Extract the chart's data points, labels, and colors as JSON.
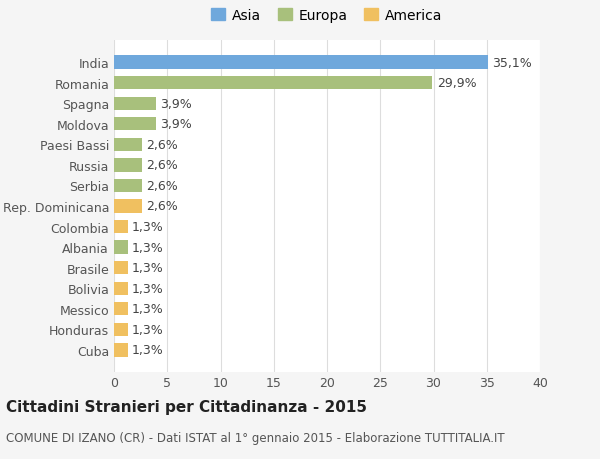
{
  "categories": [
    "India",
    "Romania",
    "Spagna",
    "Moldova",
    "Paesi Bassi",
    "Russia",
    "Serbia",
    "Rep. Dominicana",
    "Colombia",
    "Albania",
    "Brasile",
    "Bolivia",
    "Messico",
    "Honduras",
    "Cuba"
  ],
  "values": [
    35.1,
    29.9,
    3.9,
    3.9,
    2.6,
    2.6,
    2.6,
    2.6,
    1.3,
    1.3,
    1.3,
    1.3,
    1.3,
    1.3,
    1.3
  ],
  "labels": [
    "35,1%",
    "29,9%",
    "3,9%",
    "3,9%",
    "2,6%",
    "2,6%",
    "2,6%",
    "2,6%",
    "1,3%",
    "1,3%",
    "1,3%",
    "1,3%",
    "1,3%",
    "1,3%",
    "1,3%"
  ],
  "continents": [
    "Asia",
    "Europa",
    "Europa",
    "Europa",
    "Europa",
    "Europa",
    "Europa",
    "America",
    "America",
    "Europa",
    "America",
    "America",
    "America",
    "America",
    "America"
  ],
  "colors": {
    "Asia": "#6fa8dc",
    "Europa": "#a8c07c",
    "America": "#f0c060"
  },
  "legend_order": [
    "Asia",
    "Europa",
    "America"
  ],
  "title": "Cittadini Stranieri per Cittadinanza - 2015",
  "subtitle": "COMUNE DI IZANO (CR) - Dati ISTAT al 1° gennaio 2015 - Elaborazione TUTTITALIA.IT",
  "xlim": [
    0,
    40
  ],
  "xticks": [
    0,
    5,
    10,
    15,
    20,
    25,
    30,
    35,
    40
  ],
  "background_color": "#f5f5f5",
  "plot_background_color": "#ffffff",
  "grid_color": "#dddddd",
  "bar_height": 0.65,
  "label_fontsize": 9,
  "title_fontsize": 11,
  "subtitle_fontsize": 8.5,
  "tick_fontsize": 9,
  "legend_fontsize": 10
}
